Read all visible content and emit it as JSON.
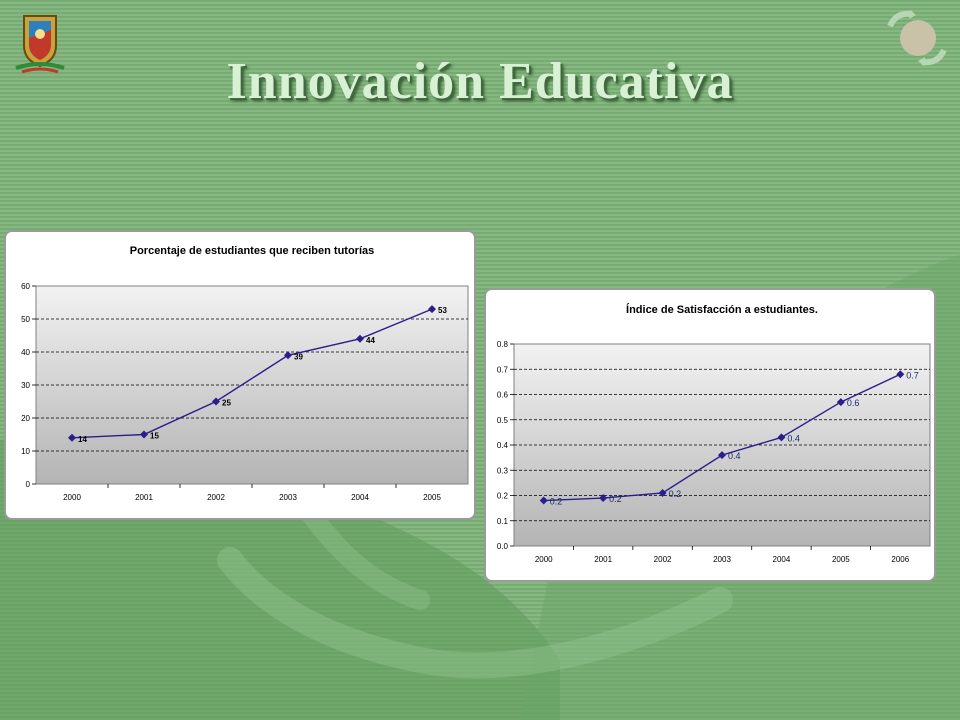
{
  "slide": {
    "title": "Innovación Educativa",
    "accent_color": "#2a1d8c",
    "icons": [
      "university-crest-icon",
      "recycle-arrows-icon"
    ]
  },
  "chart_data": [
    {
      "type": "line",
      "title": "Porcentaje de estudiantes que reciben tutorías",
      "categories": [
        "2000",
        "2001",
        "2002",
        "2003",
        "2004",
        "2005"
      ],
      "series": [
        {
          "values": [
            14,
            15,
            25,
            39,
            44,
            53
          ],
          "labels": [
            "14",
            "15",
            "25",
            "39",
            "44",
            "53"
          ]
        }
      ],
      "ylim": [
        0,
        60
      ],
      "yticks": [
        "0",
        "10",
        "20",
        "30",
        "40",
        "50",
        "60"
      ],
      "xlabel": "",
      "ylabel": "",
      "grid": true,
      "legend": "none"
    },
    {
      "type": "line",
      "title": "Índice de Satisfacción a estudiantes.",
      "categories": [
        "2000",
        "2001",
        "2002",
        "2003",
        "2004",
        "2005",
        "2006"
      ],
      "series": [
        {
          "values": [
            0.18,
            0.19,
            0.21,
            0.36,
            0.43,
            0.57,
            0.68
          ],
          "labels": [
            "0.2",
            "0.2",
            "0.2",
            "0.4",
            "0.4",
            "0.6",
            "0.7"
          ]
        }
      ],
      "ylim": [
        0,
        0.8
      ],
      "yticks": [
        "0.0",
        "0.1",
        "0.2",
        "0.3",
        "0.4",
        "0.5",
        "0.6",
        "0.7",
        "0.8"
      ],
      "xlabel": "",
      "ylabel": "",
      "grid": true,
      "legend": "none"
    }
  ]
}
